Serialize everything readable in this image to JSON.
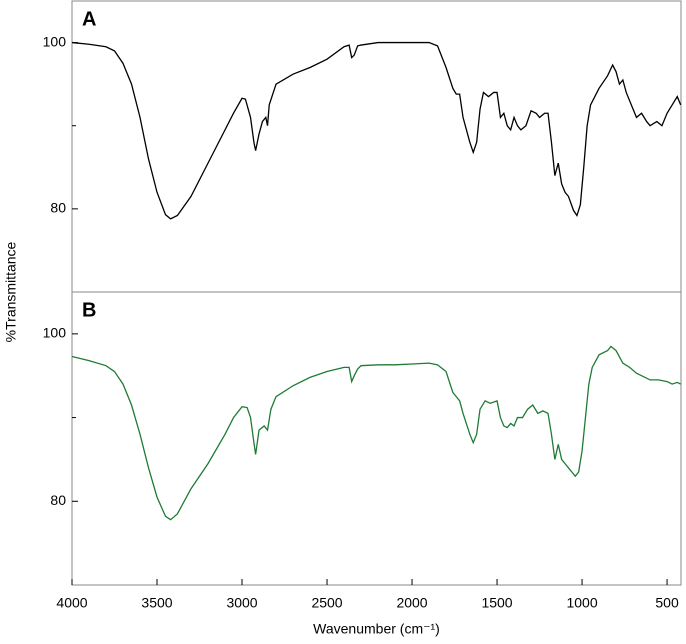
{
  "chart_data": [
    {
      "type": "line",
      "panel_label": "A",
      "ylabel": "%Transmittance",
      "xlim": [
        4000,
        418
      ],
      "ylim": [
        70,
        105
      ],
      "yticks": [
        80,
        100
      ],
      "minor_yticks": [
        90
      ],
      "x": [
        4000,
        3900,
        3800,
        3750,
        3700,
        3650,
        3600,
        3550,
        3500,
        3450,
        3420,
        3380,
        3300,
        3200,
        3100,
        3050,
        3000,
        2980,
        2950,
        2930,
        2920,
        2900,
        2880,
        2860,
        2850,
        2840,
        2800,
        2700,
        2600,
        2500,
        2400,
        2370,
        2355,
        2340,
        2320,
        2300,
        2200,
        2100,
        2000,
        1900,
        1850,
        1800,
        1760,
        1740,
        1720,
        1700,
        1660,
        1640,
        1620,
        1600,
        1580,
        1550,
        1520,
        1500,
        1480,
        1460,
        1440,
        1420,
        1400,
        1380,
        1360,
        1330,
        1300,
        1270,
        1250,
        1220,
        1200,
        1180,
        1160,
        1140,
        1120,
        1100,
        1080,
        1050,
        1030,
        1010,
        990,
        970,
        950,
        900,
        850,
        820,
        800,
        780,
        760,
        740,
        700,
        680,
        650,
        620,
        600,
        560,
        530,
        500,
        470,
        440,
        420
      ],
      "series": [
        {
          "color": "#000000",
          "values": [
            100,
            99.8,
            99.5,
            99,
            97.5,
            95,
            91,
            86,
            82,
            79.3,
            78.8,
            79.2,
            81.5,
            85.5,
            89.5,
            91.5,
            93.3,
            93.2,
            91,
            88,
            87,
            89,
            90.5,
            91,
            90,
            92.5,
            95,
            96.2,
            97,
            98,
            99.5,
            99.7,
            98.2,
            98.5,
            99.6,
            99.7,
            100,
            100,
            100,
            100,
            99.6,
            97,
            94.5,
            93.8,
            93.8,
            91,
            88,
            86.8,
            88,
            92,
            94,
            93.5,
            94,
            94,
            91,
            91.5,
            90,
            89.5,
            91,
            90,
            89.5,
            90,
            91.8,
            91.5,
            91,
            91.5,
            91.5,
            88,
            84,
            85.5,
            83,
            82,
            81.5,
            79.8,
            79.2,
            80.5,
            85,
            90,
            92.5,
            94.5,
            96,
            97.3,
            96.5,
            95,
            95.5,
            94,
            92,
            91,
            91.5,
            90.5,
            90,
            90.5,
            90,
            91.5,
            92.5,
            93.5,
            92.5
          ]
        }
      ]
    },
    {
      "type": "line",
      "panel_label": "B",
      "xlabel": "Wavenumber (cm⁻¹)",
      "xlim": [
        4000,
        418
      ],
      "xticks": [
        4000,
        3500,
        3000,
        2500,
        2000,
        1500,
        1000,
        500
      ],
      "ylim": [
        70,
        105
      ],
      "yticks": [
        80,
        100
      ],
      "minor_yticks": [
        90
      ],
      "x": [
        4000,
        3900,
        3800,
        3750,
        3700,
        3650,
        3600,
        3550,
        3500,
        3450,
        3420,
        3380,
        3300,
        3200,
        3100,
        3050,
        3000,
        2970,
        2950,
        2930,
        2920,
        2900,
        2870,
        2850,
        2830,
        2800,
        2700,
        2600,
        2500,
        2400,
        2370,
        2355,
        2340,
        2320,
        2300,
        2200,
        2100,
        2000,
        1900,
        1850,
        1800,
        1760,
        1740,
        1720,
        1700,
        1660,
        1640,
        1620,
        1600,
        1570,
        1540,
        1500,
        1480,
        1460,
        1440,
        1420,
        1400,
        1380,
        1350,
        1320,
        1290,
        1260,
        1230,
        1200,
        1180,
        1160,
        1140,
        1120,
        1100,
        1080,
        1060,
        1040,
        1020,
        1000,
        980,
        960,
        940,
        900,
        850,
        830,
        800,
        760,
        720,
        680,
        650,
        600,
        550,
        500,
        470,
        440,
        420
      ],
      "series": [
        {
          "color": "#1e7b34",
          "values": [
            97.3,
            96.8,
            96.2,
            95.5,
            94,
            91.5,
            88,
            84,
            80.5,
            78.2,
            77.8,
            78.5,
            81.5,
            84.5,
            88,
            90,
            91.3,
            91.2,
            90,
            87,
            85.6,
            88.5,
            89,
            88.5,
            91,
            92.5,
            93.8,
            94.8,
            95.5,
            96,
            96,
            94.3,
            95,
            95.8,
            96.2,
            96.3,
            96.3,
            96.4,
            96.5,
            96.3,
            95.5,
            93,
            92.5,
            92,
            90.5,
            88,
            87,
            88,
            91,
            92,
            91.7,
            92,
            90,
            89,
            88.8,
            89.3,
            89,
            90,
            90,
            91,
            91.5,
            90.5,
            90.8,
            90.5,
            88,
            85,
            86.8,
            85,
            84.5,
            84,
            83.5,
            83,
            83.5,
            86,
            90,
            94,
            96,
            97.5,
            98,
            98.5,
            98,
            96.5,
            96,
            95.3,
            95,
            94.5,
            94.5,
            94.3,
            94,
            94.2,
            94
          ]
        }
      ]
    }
  ]
}
